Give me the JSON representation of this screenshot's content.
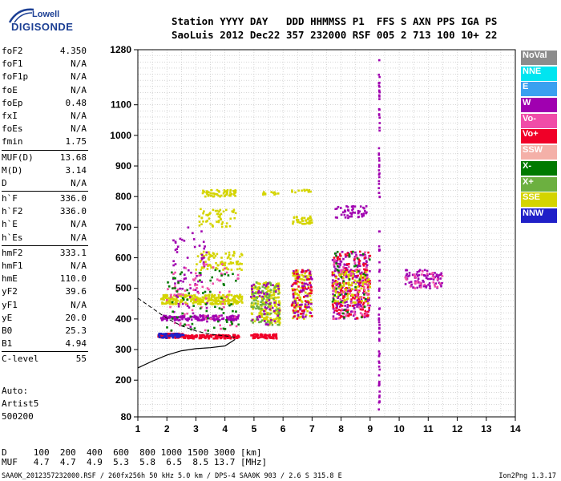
{
  "logo": {
    "line1": "Lowell",
    "line2": "DIGISONDE"
  },
  "header": {
    "line1": "Station YYYY DAY   DDD HHMMSS P1  FFS S AXN PPS IGA PS",
    "line2": "SaoLuis 2012 Dec22 357 232000 RSF 005 2 713 100 10+ 22"
  },
  "params": [
    [
      {
        "name": "foF2",
        "value": "4.350"
      },
      {
        "name": "foF1",
        "value": "N/A"
      },
      {
        "name": "foF1p",
        "value": "N/A"
      },
      {
        "name": "foE",
        "value": "N/A"
      },
      {
        "name": "foEp",
        "value": "0.48"
      },
      {
        "name": "fxI",
        "value": "N/A"
      },
      {
        "name": "foEs",
        "value": "N/A"
      },
      {
        "name": "fmin",
        "value": "1.75"
      }
    ],
    [
      {
        "name": "MUF(D)",
        "value": "13.68"
      },
      {
        "name": "M(D)",
        "value": "3.14"
      },
      {
        "name": "D",
        "value": "N/A"
      }
    ],
    [
      {
        "name": "h`F",
        "value": "336.0"
      },
      {
        "name": "h`F2",
        "value": "336.0"
      },
      {
        "name": "h`E",
        "value": "N/A"
      },
      {
        "name": "h`Es",
        "value": "N/A"
      }
    ],
    [
      {
        "name": "hmF2",
        "value": "333.1"
      },
      {
        "name": "hmF1",
        "value": "N/A"
      },
      {
        "name": "hmE",
        "value": "110.0"
      },
      {
        "name": "yF2",
        "value": "39.6"
      },
      {
        "name": "yF1",
        "value": "N/A"
      },
      {
        "name": "yE",
        "value": "20.0"
      },
      {
        "name": "B0",
        "value": "25.3"
      },
      {
        "name": "B1",
        "value": "4.94"
      }
    ],
    [
      {
        "name": "C-level",
        "value": "55"
      }
    ]
  ],
  "auto": {
    "line1": "Auto:",
    "line2": "Artist5",
    "line3": "500200"
  },
  "dmuf": {
    "line1": "D     100  200  400  600  800 1000 1500 3000 [km]",
    "line2": "MUF   4.7  4.7  4.9  5.3  5.8  6.5  8.5 13.7 [MHz]"
  },
  "footer": {
    "left": "SAA0K_2012357232000.RSF / 260fx256h 50 kHz 5.0 km / DPS-4 SAA0K 903 / 2.6 S 315.8 E",
    "right": "Ion2Png 1.3.17"
  },
  "legend": [
    {
      "label": "NoVal",
      "color": "#8c8c8c"
    },
    {
      "label": "NNE",
      "color": "#00e5f0"
    },
    {
      "label": "E",
      "color": "#3aa0f0"
    },
    {
      "label": "W",
      "color": "#a000b0"
    },
    {
      "label": "Vo-",
      "color": "#f04ca8"
    },
    {
      "label": "Vo+",
      "color": "#f00028"
    },
    {
      "label": "SSW",
      "color": "#f4b0a8"
    },
    {
      "label": "X-",
      "color": "#007a00"
    },
    {
      "label": "X+",
      "color": "#6cb040"
    },
    {
      "label": "SSE",
      "color": "#d4d400"
    },
    {
      "label": "NNW",
      "color": "#2020c8"
    }
  ],
  "chart_data": {
    "type": "scatter",
    "title": "",
    "xlabel": "",
    "ylabel": "",
    "xlim": [
      1,
      14
    ],
    "ylim": [
      80,
      1280
    ],
    "x_ticks": [
      1,
      2,
      3,
      4,
      5,
      6,
      7,
      8,
      9,
      10,
      11,
      12,
      13,
      14
    ],
    "y_ticks": [
      80,
      200,
      300,
      400,
      500,
      600,
      700,
      800,
      900,
      1000,
      1100,
      1280
    ],
    "grid": true,
    "profile": [
      [
        1.0,
        240
      ],
      [
        1.5,
        262
      ],
      [
        2.0,
        282
      ],
      [
        2.5,
        296
      ],
      [
        3.0,
        303
      ],
      [
        3.5,
        306
      ],
      [
        4.0,
        312
      ],
      [
        4.35,
        333
      ]
    ],
    "dashed_curve": [
      [
        1.0,
        468
      ],
      [
        1.5,
        435
      ],
      [
        2.0,
        402
      ],
      [
        2.5,
        378
      ],
      [
        3.0,
        361
      ],
      [
        3.5,
        350
      ],
      [
        4.0,
        345
      ],
      [
        4.35,
        340
      ]
    ],
    "clusters": [
      {
        "x": [
          1.7,
          2.6
        ],
        "y": [
          338,
          352
        ],
        "color": "#f00028",
        "n": 110
      },
      {
        "x": [
          1.7,
          2.6
        ],
        "y": [
          338,
          352
        ],
        "color": "#2020c8",
        "n": 50
      },
      {
        "x": [
          2.6,
          4.5
        ],
        "y": [
          336,
          348
        ],
        "color": "#f00028",
        "n": 120
      },
      {
        "x": [
          1.8,
          4.5
        ],
        "y": [
          395,
          412
        ],
        "color": "#a000b0",
        "n": 150
      },
      {
        "x": [
          1.8,
          4.6
        ],
        "y": [
          448,
          480
        ],
        "color": "#d4d400",
        "n": 280
      },
      {
        "x": [
          3.0,
          4.6
        ],
        "y": [
          560,
          620
        ],
        "color": "#d4d400",
        "n": 90
      },
      {
        "x": [
          3.2,
          4.4
        ],
        "y": [
          800,
          822
        ],
        "color": "#d4d400",
        "n": 60
      },
      {
        "x": [
          3.1,
          4.4
        ],
        "y": [
          700,
          760
        ],
        "color": "#d4d400",
        "n": 55
      },
      {
        "x": [
          2.2,
          3.4
        ],
        "y": [
          360,
          700
        ],
        "color": "#a000b0",
        "n": 70
      },
      {
        "x": [
          2.0,
          4.5
        ],
        "y": [
          360,
          580
        ],
        "color": "#f04ca8",
        "n": 80
      },
      {
        "x": [
          2.0,
          4.5
        ],
        "y": [
          360,
          560
        ],
        "color": "#007a00",
        "n": 70
      },
      {
        "x": [
          4.9,
          5.8
        ],
        "y": [
          336,
          350
        ],
        "color": "#f00028",
        "n": 60
      },
      {
        "x": [
          4.9,
          5.9
        ],
        "y": [
          380,
          520
        ],
        "color": "#d4d400",
        "n": 200
      },
      {
        "x": [
          4.9,
          5.9
        ],
        "y": [
          380,
          520
        ],
        "color": "#6cb040",
        "n": 80
      },
      {
        "x": [
          4.9,
          5.9
        ],
        "y": [
          380,
          520
        ],
        "color": "#a000b0",
        "n": 50
      },
      {
        "x": [
          6.3,
          7.0
        ],
        "y": [
          400,
          560
        ],
        "color": "#d4d400",
        "n": 120
      },
      {
        "x": [
          6.3,
          7.0
        ],
        "y": [
          400,
          560
        ],
        "color": "#a000b0",
        "n": 70
      },
      {
        "x": [
          6.3,
          7.0
        ],
        "y": [
          400,
          560
        ],
        "color": "#f00028",
        "n": 50
      },
      {
        "x": [
          6.3,
          7.0
        ],
        "y": [
          710,
          735
        ],
        "color": "#d4d400",
        "n": 40
      },
      {
        "x": [
          7.7,
          9.0
        ],
        "y": [
          400,
          620
        ],
        "color": "#a000b0",
        "n": 220
      },
      {
        "x": [
          7.7,
          9.0
        ],
        "y": [
          400,
          620
        ],
        "color": "#f00028",
        "n": 150
      },
      {
        "x": [
          7.7,
          9.0
        ],
        "y": [
          450,
          560
        ],
        "color": "#d4d400",
        "n": 110
      },
      {
        "x": [
          7.7,
          9.0
        ],
        "y": [
          400,
          620
        ],
        "color": "#f04ca8",
        "n": 70
      },
      {
        "x": [
          7.7,
          9.0
        ],
        "y": [
          400,
          620
        ],
        "color": "#007a00",
        "n": 40
      },
      {
        "x": [
          7.8,
          8.9
        ],
        "y": [
          730,
          770
        ],
        "color": "#a000b0",
        "n": 50
      },
      {
        "x": [
          10.2,
          11.5
        ],
        "y": [
          500,
          560
        ],
        "color": "#a000b0",
        "n": 80
      },
      {
        "x": [
          10.2,
          11.5
        ],
        "y": [
          500,
          560
        ],
        "color": "#f04ca8",
        "n": 30
      },
      {
        "x": [
          5.3,
          5.9
        ],
        "y": [
          805,
          815
        ],
        "color": "#d4d400",
        "n": 12
      },
      {
        "x": [
          6.3,
          7.0
        ],
        "y": [
          812,
          822
        ],
        "color": "#d4d400",
        "n": 12
      },
      {
        "x": [
          9.3,
          9.33
        ],
        "y": [
          100,
          1260
        ],
        "color": "#a000b0",
        "n": 90
      }
    ]
  }
}
